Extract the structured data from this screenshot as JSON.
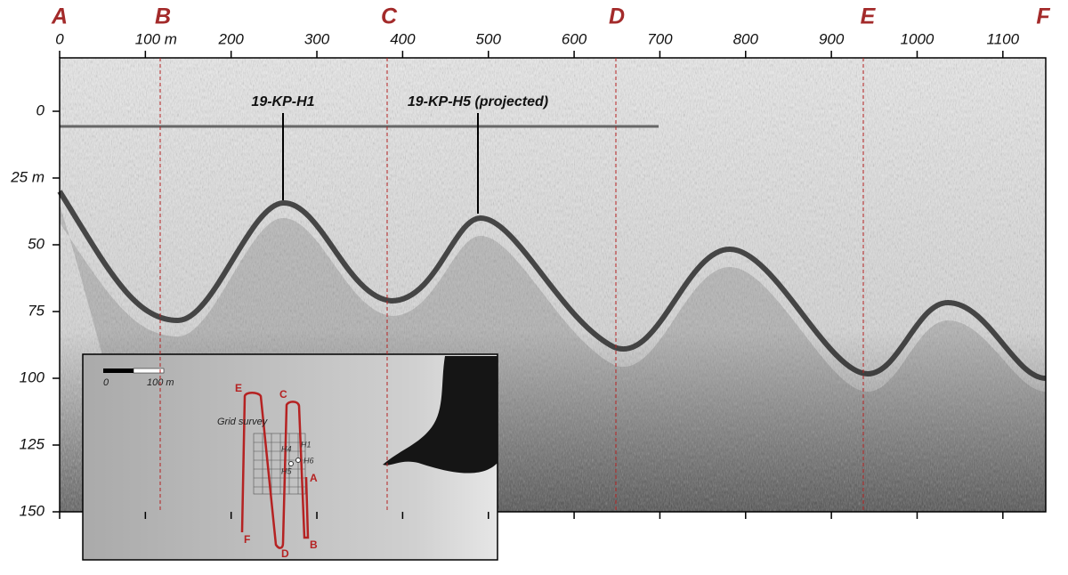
{
  "profile": {
    "top_axis": {
      "range": [
        0,
        1150
      ],
      "ticks": [
        0,
        {
          "value": 100,
          "label": "100 m"
        },
        200,
        300,
        400,
        500,
        600,
        700,
        800,
        900,
        1000,
        1100
      ]
    },
    "left_axis": {
      "range": [
        -20,
        150
      ],
      "ticks": [
        0,
        {
          "value": 25,
          "label": "25 m"
        },
        50,
        75,
        100,
        125,
        150
      ]
    },
    "section_labels": [
      "A",
      "B",
      "C",
      "D",
      "E",
      "F"
    ],
    "annotations": [
      "19-KP-H1",
      "19-KP-H5 (projected)"
    ]
  },
  "inset": {
    "scale_labels": [
      "0",
      "100 m"
    ],
    "grid_label": "Grid survey",
    "track_labels": [
      "E",
      "C",
      "A",
      "F",
      "D",
      "B"
    ],
    "hole_labels": [
      "H4",
      "H1",
      "H6",
      "H5"
    ]
  }
}
